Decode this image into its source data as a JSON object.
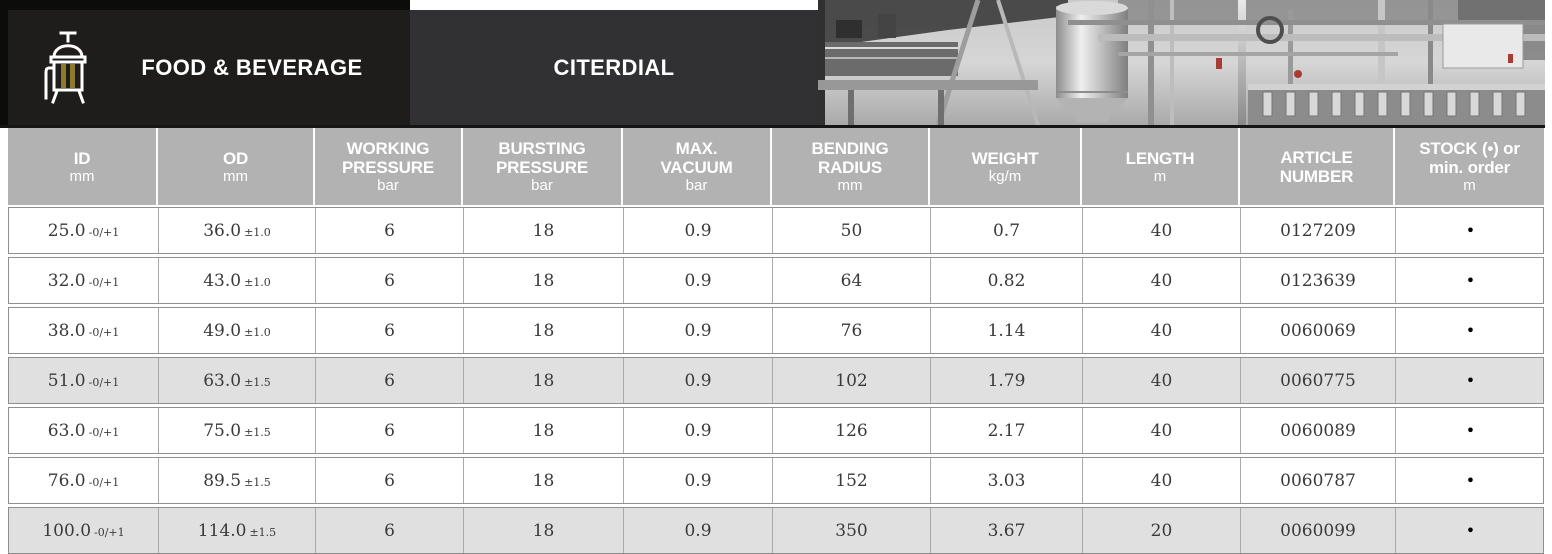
{
  "header": {
    "category": "FOOD & BEVERAGE",
    "product": "CITERDIAL",
    "icon": "brewing-tank-icon",
    "colors": {
      "category_panel_bg": "#1E1D1B",
      "product_panel_bg": "#313133",
      "icon_gold": "#8F7A2B",
      "table_header_bg": "#B2B2B2",
      "row_shaded_bg": "#E0E0E0",
      "photo_accent_red": "#A93B32"
    }
  },
  "table": {
    "columns": [
      {
        "title_lines": [
          "ID"
        ],
        "unit": "mm"
      },
      {
        "title_lines": [
          "OD"
        ],
        "unit": "mm"
      },
      {
        "title_lines": [
          "WORKING",
          "PRESSURE"
        ],
        "unit": "bar"
      },
      {
        "title_lines": [
          "BURSTING",
          "PRESSURE"
        ],
        "unit": "bar"
      },
      {
        "title_lines": [
          "MAX.",
          "VACUUM"
        ],
        "unit": "bar"
      },
      {
        "title_lines": [
          "BENDING",
          "RADIUS"
        ],
        "unit": "mm"
      },
      {
        "title_lines": [
          "WEIGHT"
        ],
        "unit": "kg/m"
      },
      {
        "title_lines": [
          "LENGTH"
        ],
        "unit": "m"
      },
      {
        "title_lines": [
          "ARTICLE",
          "NUMBER"
        ],
        "unit": ""
      },
      {
        "title_lines": [
          "STOCK (•) or",
          "min. order"
        ],
        "unit": "m"
      }
    ],
    "rows": [
      {
        "id": "25.0",
        "id_tol": "-0/+1",
        "od": "36.0",
        "od_tol": "±1.0",
        "working_pressure": "6",
        "bursting_pressure": "18",
        "max_vacuum": "0.9",
        "bending_radius": "50",
        "weight": "0.7",
        "length": "40",
        "article_number": "0127209",
        "stock": "•",
        "shaded": false
      },
      {
        "id": "32.0",
        "id_tol": "-0/+1",
        "od": "43.0",
        "od_tol": "±1.0",
        "working_pressure": "6",
        "bursting_pressure": "18",
        "max_vacuum": "0.9",
        "bending_radius": "64",
        "weight": "0.82",
        "length": "40",
        "article_number": "0123639",
        "stock": "•",
        "shaded": false
      },
      {
        "id": "38.0",
        "id_tol": "-0/+1",
        "od": "49.0",
        "od_tol": "±1.0",
        "working_pressure": "6",
        "bursting_pressure": "18",
        "max_vacuum": "0.9",
        "bending_radius": "76",
        "weight": "1.14",
        "length": "40",
        "article_number": "0060069",
        "stock": "•",
        "shaded": false
      },
      {
        "id": "51.0",
        "id_tol": "-0/+1",
        "od": "63.0",
        "od_tol": "±1.5",
        "working_pressure": "6",
        "bursting_pressure": "18",
        "max_vacuum": "0.9",
        "bending_radius": "102",
        "weight": "1.79",
        "length": "40",
        "article_number": "0060775",
        "stock": "•",
        "shaded": true
      },
      {
        "id": "63.0",
        "id_tol": "-0/+1",
        "od": "75.0",
        "od_tol": "±1.5",
        "working_pressure": "6",
        "bursting_pressure": "18",
        "max_vacuum": "0.9",
        "bending_radius": "126",
        "weight": "2.17",
        "length": "40",
        "article_number": "0060089",
        "stock": "•",
        "shaded": false
      },
      {
        "id": "76.0",
        "id_tol": "-0/+1",
        "od": "89.5",
        "od_tol": "±1.5",
        "working_pressure": "6",
        "bursting_pressure": "18",
        "max_vacuum": "0.9",
        "bending_radius": "152",
        "weight": "3.03",
        "length": "40",
        "article_number": "0060787",
        "stock": "•",
        "shaded": false
      },
      {
        "id": "100.0",
        "id_tol": "-0/+1",
        "od": "114.0",
        "od_tol": "±1.5",
        "working_pressure": "6",
        "bursting_pressure": "18",
        "max_vacuum": "0.9",
        "bending_radius": "350",
        "weight": "3.67",
        "length": "20",
        "article_number": "0060099",
        "stock": "•",
        "shaded": true
      }
    ]
  }
}
